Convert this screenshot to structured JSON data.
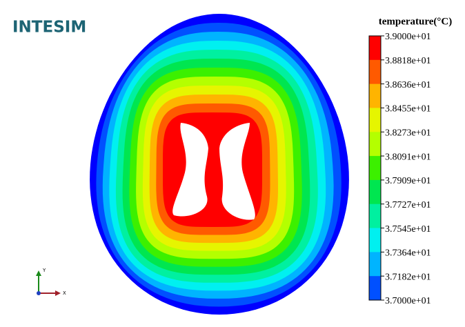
{
  "logo": "INTESIM",
  "legend": {
    "title": "temperature(°C)",
    "labels": [
      "3.9000e+01",
      "3.8818e+01",
      "3.8636e+01",
      "3.8455e+01",
      "3.8273e+01",
      "3.8091e+01",
      "3.7909e+01",
      "3.7727e+01",
      "3.7545e+01",
      "3.7364e+01",
      "3.7182e+01",
      "3.7000e+01"
    ],
    "colors": [
      "#ff0000",
      "#ff5a00",
      "#ffb400",
      "#e6f500",
      "#b4ff00",
      "#3cf000",
      "#00e650",
      "#00f0a0",
      "#00f0f0",
      "#00b4ff",
      "#0050ff"
    ],
    "bottom_color": "#0000ff"
  },
  "triad": {
    "y": "Y",
    "x": "X"
  }
}
